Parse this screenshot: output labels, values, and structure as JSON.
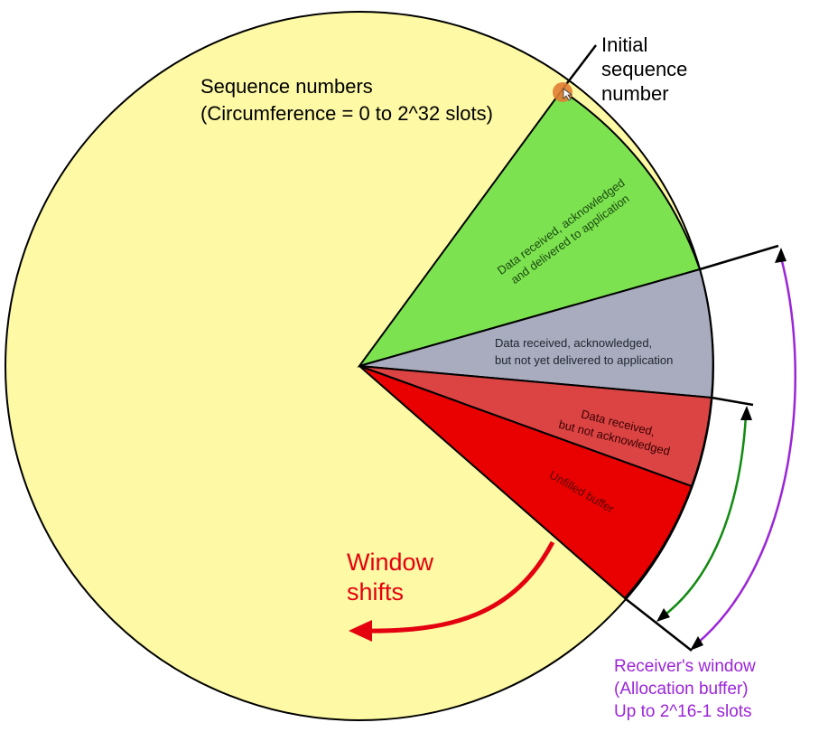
{
  "labels": {
    "sequence_numbers": "Sequence numbers",
    "circumference": "(Circumference = 0 to 2^32 slots)",
    "initial_seq_1": "Initial",
    "initial_seq_2": "sequence",
    "initial_seq_3": "number",
    "sector_green_1": "Data received, acknowledged",
    "sector_green_2": "and delivered to application",
    "sector_gray_1": "Data received, acknowledged,",
    "sector_gray_2": "but not yet delivered to application",
    "sector_lightred_1": "Data received,",
    "sector_lightred_2": "but not acknowledged",
    "sector_red": "Unfilled buffer",
    "window_shifts_1": "Window",
    "window_shifts_2": "shifts",
    "receiver_1": "Receiver's window",
    "receiver_2": "(Allocation buffer)",
    "receiver_3": "Up to 2^16-1 slots"
  },
  "colors": {
    "circle": "#fdf9a4",
    "green": "#7de24f",
    "gray": "#a8acbe",
    "light_red": "#dc4444",
    "red": "#e90000",
    "arrow_red": "#e4000f",
    "purple": "#9b25d8",
    "dark_green": "#118a11",
    "marker": "#e07d33"
  }
}
